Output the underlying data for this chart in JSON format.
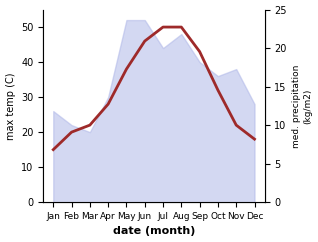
{
  "months": [
    "Jan",
    "Feb",
    "Mar",
    "Apr",
    "May",
    "Jun",
    "Jul",
    "Aug",
    "Sep",
    "Oct",
    "Nov",
    "Dec"
  ],
  "temp": [
    15,
    20,
    22,
    28,
    38,
    46,
    50,
    50,
    43,
    32,
    22,
    18
  ],
  "precip_left_scale": [
    26,
    22,
    20,
    30,
    52,
    52,
    44,
    48,
    40,
    36,
    38,
    28
  ],
  "temp_color": "#9e2a2a",
  "precip_color": "#b0b8e8",
  "precip_alpha": 0.55,
  "ylabel_left": "max temp (C)",
  "ylabel_right": "med. precipitation\n(kg/m2)",
  "xlabel": "date (month)",
  "ylim_left": [
    0,
    55
  ],
  "ylim_right": [
    0,
    25
  ],
  "yticks_left": [
    0,
    10,
    20,
    30,
    40,
    50
  ],
  "yticks_right": [
    0,
    5,
    10,
    15,
    20,
    25
  ],
  "bg_color": "#ffffff",
  "temp_linewidth": 2.0,
  "figsize": [
    3.18,
    2.42
  ],
  "dpi": 100
}
